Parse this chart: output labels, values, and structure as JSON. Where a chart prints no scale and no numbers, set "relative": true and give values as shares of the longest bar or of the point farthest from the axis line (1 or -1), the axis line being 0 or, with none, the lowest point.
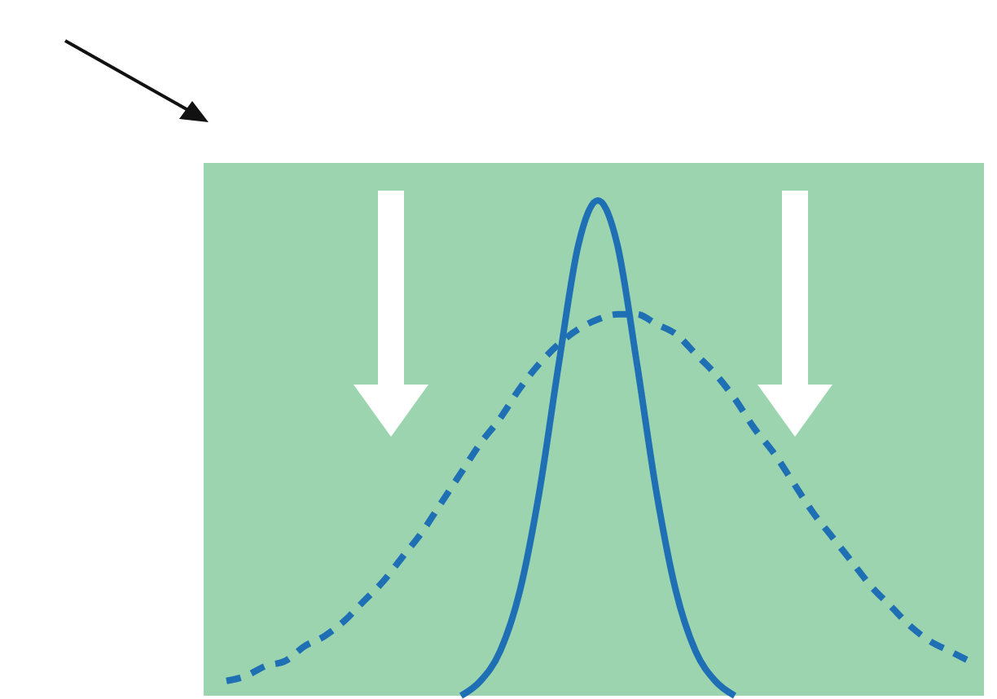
{
  "chart_data": {
    "type": "line",
    "relative": true,
    "categories": [
      null,
      null,
      null,
      null,
      null,
      null,
      null,
      null,
      null,
      null,
      null,
      null,
      null,
      null,
      null,
      null,
      null,
      null,
      null,
      null,
      null,
      null,
      null,
      null,
      null,
      null,
      null,
      null,
      null,
      null,
      null,
      null,
      null,
      null,
      null,
      null,
      null,
      null,
      null,
      null
    ],
    "series": [
      {
        "color": "#1f6fb5",
        "line_style": "dashed",
        "values": [
          null,
          0.03,
          0.04,
          0.06,
          0.07,
          0.1,
          0.12,
          0.15,
          0.19,
          0.23,
          0.28,
          0.33,
          0.39,
          0.45,
          0.51,
          0.56,
          0.62,
          0.67,
          0.71,
          0.74,
          0.76,
          0.77,
          0.77,
          0.75,
          0.73,
          0.69,
          0.65,
          0.6,
          0.54,
          0.49,
          0.43,
          0.37,
          0.32,
          0.27,
          0.22,
          0.18,
          0.14,
          0.11,
          0.09,
          0.07
        ]
      },
      {
        "color": "#1f6fb5",
        "line_style": "solid",
        "values": [
          null,
          null,
          null,
          null,
          null,
          null,
          null,
          null,
          null,
          null,
          null,
          null,
          null,
          0,
          0.03,
          0.09,
          0.21,
          0.41,
          0.67,
          0.91,
          1,
          0.91,
          0.67,
          0.41,
          0.21,
          0.09,
          0.03,
          0,
          null,
          null,
          null,
          null,
          null,
          null,
          null,
          null,
          null,
          null,
          null,
          null
        ]
      }
    ]
  }
}
